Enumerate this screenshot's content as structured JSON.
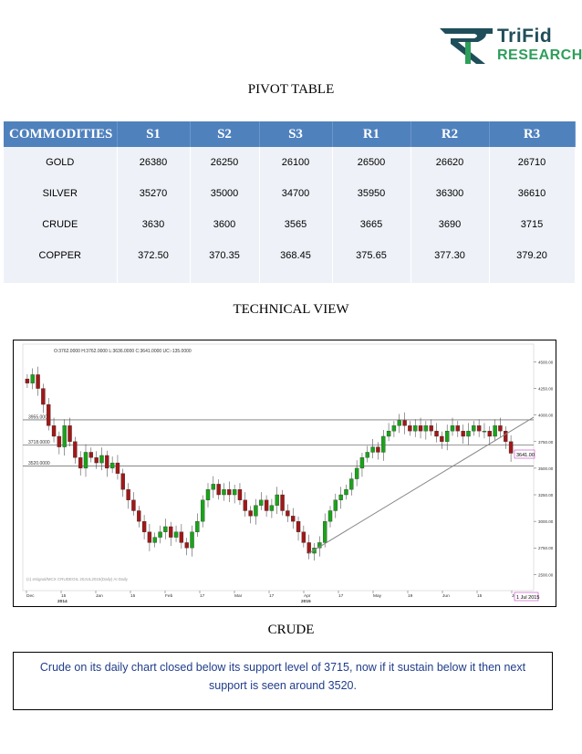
{
  "logo": {
    "line1": "TriFid",
    "line2": "RESEARCH",
    "colors": {
      "dark": "#1f4e5a",
      "green": "#2e9e5b"
    },
    "icon": "rupee-symbol-icon"
  },
  "pivot": {
    "title": "PIVOT TABLE",
    "headers": [
      "COMMODITIES",
      "S1",
      "S2",
      "S3",
      "R1",
      "R2",
      "R3"
    ],
    "rows": [
      [
        "GOLD",
        "26380",
        "26250",
        "26100",
        "26500",
        "26620",
        "26710"
      ],
      [
        "SILVER",
        "35270",
        "35000",
        "34700",
        "35950",
        "36300",
        "36610"
      ],
      [
        "CRUDE",
        "3630",
        "3600",
        "3565",
        "3665",
        "3690",
        "3715"
      ],
      [
        "COPPER",
        "372.50",
        "370.35",
        "368.45",
        "375.65",
        "377.30",
        "379.20"
      ]
    ]
  },
  "technical": {
    "title": "TECHNICAL VIEW",
    "ohlc_text": "O:3762.0000  H:3762.0000  L:3636.0000  C:3641.0000  UC:-135.0000",
    "watermark": "(c) eSignal/MCX CRUDEOIL 20JUL2015(Daily) AI Daily",
    "current_price_label": "3641.00",
    "date_label": "1 Jul 2015",
    "level_labels": [
      "3955.0000",
      "3718.0000",
      "3520.0000"
    ],
    "y_axis_labels": [
      "4500.00",
      "4250.00",
      "4000.00",
      "3750.00",
      "3500.00",
      "3250.00",
      "3000.00",
      "2750.00",
      "2500.00"
    ],
    "x_axis_labels": [
      "Dec",
      "15",
      "Jan",
      "15",
      "Feb",
      "17",
      "Mar",
      "17",
      "Apr",
      "17",
      "May",
      "19",
      "Jun",
      "15",
      "Jul"
    ],
    "x_year_labels": [
      "2014",
      "2015"
    ],
    "colors": {
      "up": "#1aa31a",
      "down": "#a01818",
      "line": "#888888"
    }
  },
  "chart_data": {
    "type": "candlestick",
    "title": "",
    "ylim": [
      2400,
      4650
    ],
    "horizontal_levels": [
      3955,
      3718,
      3520
    ],
    "trendline": {
      "from_close_approx": 2700,
      "to_close_approx": 3980
    },
    "closes": [
      4300,
      4380,
      4250,
      4100,
      3900,
      3800,
      3700,
      3900,
      3750,
      3600,
      3500,
      3650,
      3600,
      3550,
      3620,
      3500,
      3550,
      3450,
      3300,
      3200,
      3100,
      3000,
      2900,
      2800,
      2850,
      2900,
      2950,
      2850,
      2900,
      2800,
      2750,
      2900,
      3000,
      3200,
      3300,
      3350,
      3250,
      3300,
      3250,
      3300,
      3200,
      3100,
      3050,
      3150,
      3200,
      3100,
      3150,
      3250,
      3100,
      3050,
      3000,
      2900,
      2800,
      2700,
      2750,
      2800,
      3000,
      3100,
      3200,
      3250,
      3300,
      3400,
      3500,
      3600,
      3650,
      3700,
      3650,
      3800,
      3850,
      3900,
      3950,
      3900,
      3850,
      3900,
      3850,
      3900,
      3850,
      3800,
      3750,
      3850,
      3900,
      3850,
      3800,
      3850,
      3900,
      3850,
      3850,
      3800,
      3900,
      3850,
      3750,
      3641
    ]
  },
  "crude": {
    "title": "CRUDE",
    "text": "Crude on its daily chart closed below its support level of 3715, now if it sustain below it then next support is seen around 3520."
  }
}
